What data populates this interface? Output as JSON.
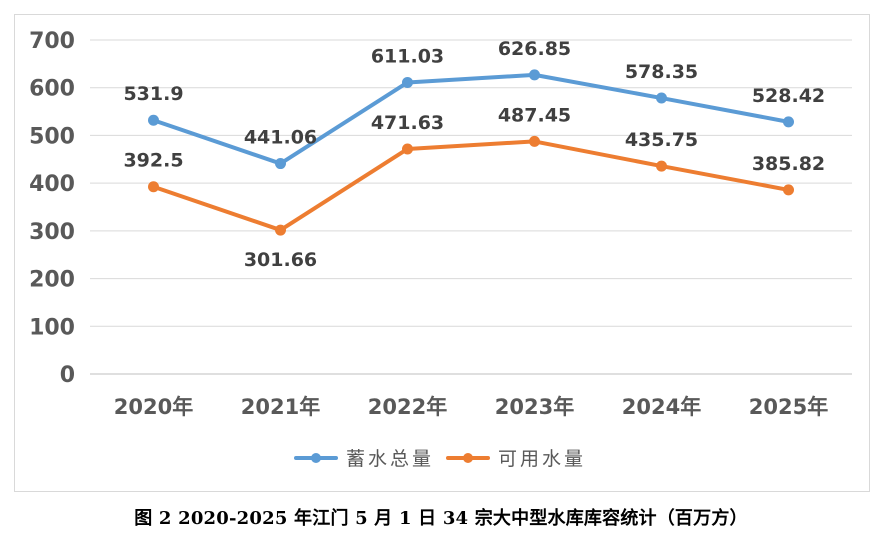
{
  "caption": "图 2 2020-2025 年江门 5 月 1 日 34 宗大中型水库库容统计（百万方）",
  "chart_data": {
    "type": "line",
    "categories": [
      "2020年",
      "2021年",
      "2022年",
      "2023年",
      "2024年",
      "2025年"
    ],
    "series": [
      {
        "name": "蓄水总量",
        "color": "#5b9bd5",
        "values": [
          531.9,
          441.06,
          611.03,
          626.85,
          578.35,
          528.42
        ],
        "labels": [
          "531.9",
          "441.06",
          "611.03",
          "626.85",
          "578.35",
          "528.42"
        ]
      },
      {
        "name": "可用水量",
        "color": "#ed7d31",
        "values": [
          392.5,
          301.66,
          471.63,
          487.45,
          435.75,
          385.82
        ],
        "labels": [
          "392.5",
          "301.66",
          "471.63",
          "487.45",
          "435.75",
          "385.82"
        ]
      }
    ],
    "yticks": [
      "0",
      "100",
      "200",
      "300",
      "400",
      "500",
      "600",
      "700"
    ],
    "ylim": [
      0,
      700
    ],
    "grid": true,
    "legend": "bottom"
  }
}
